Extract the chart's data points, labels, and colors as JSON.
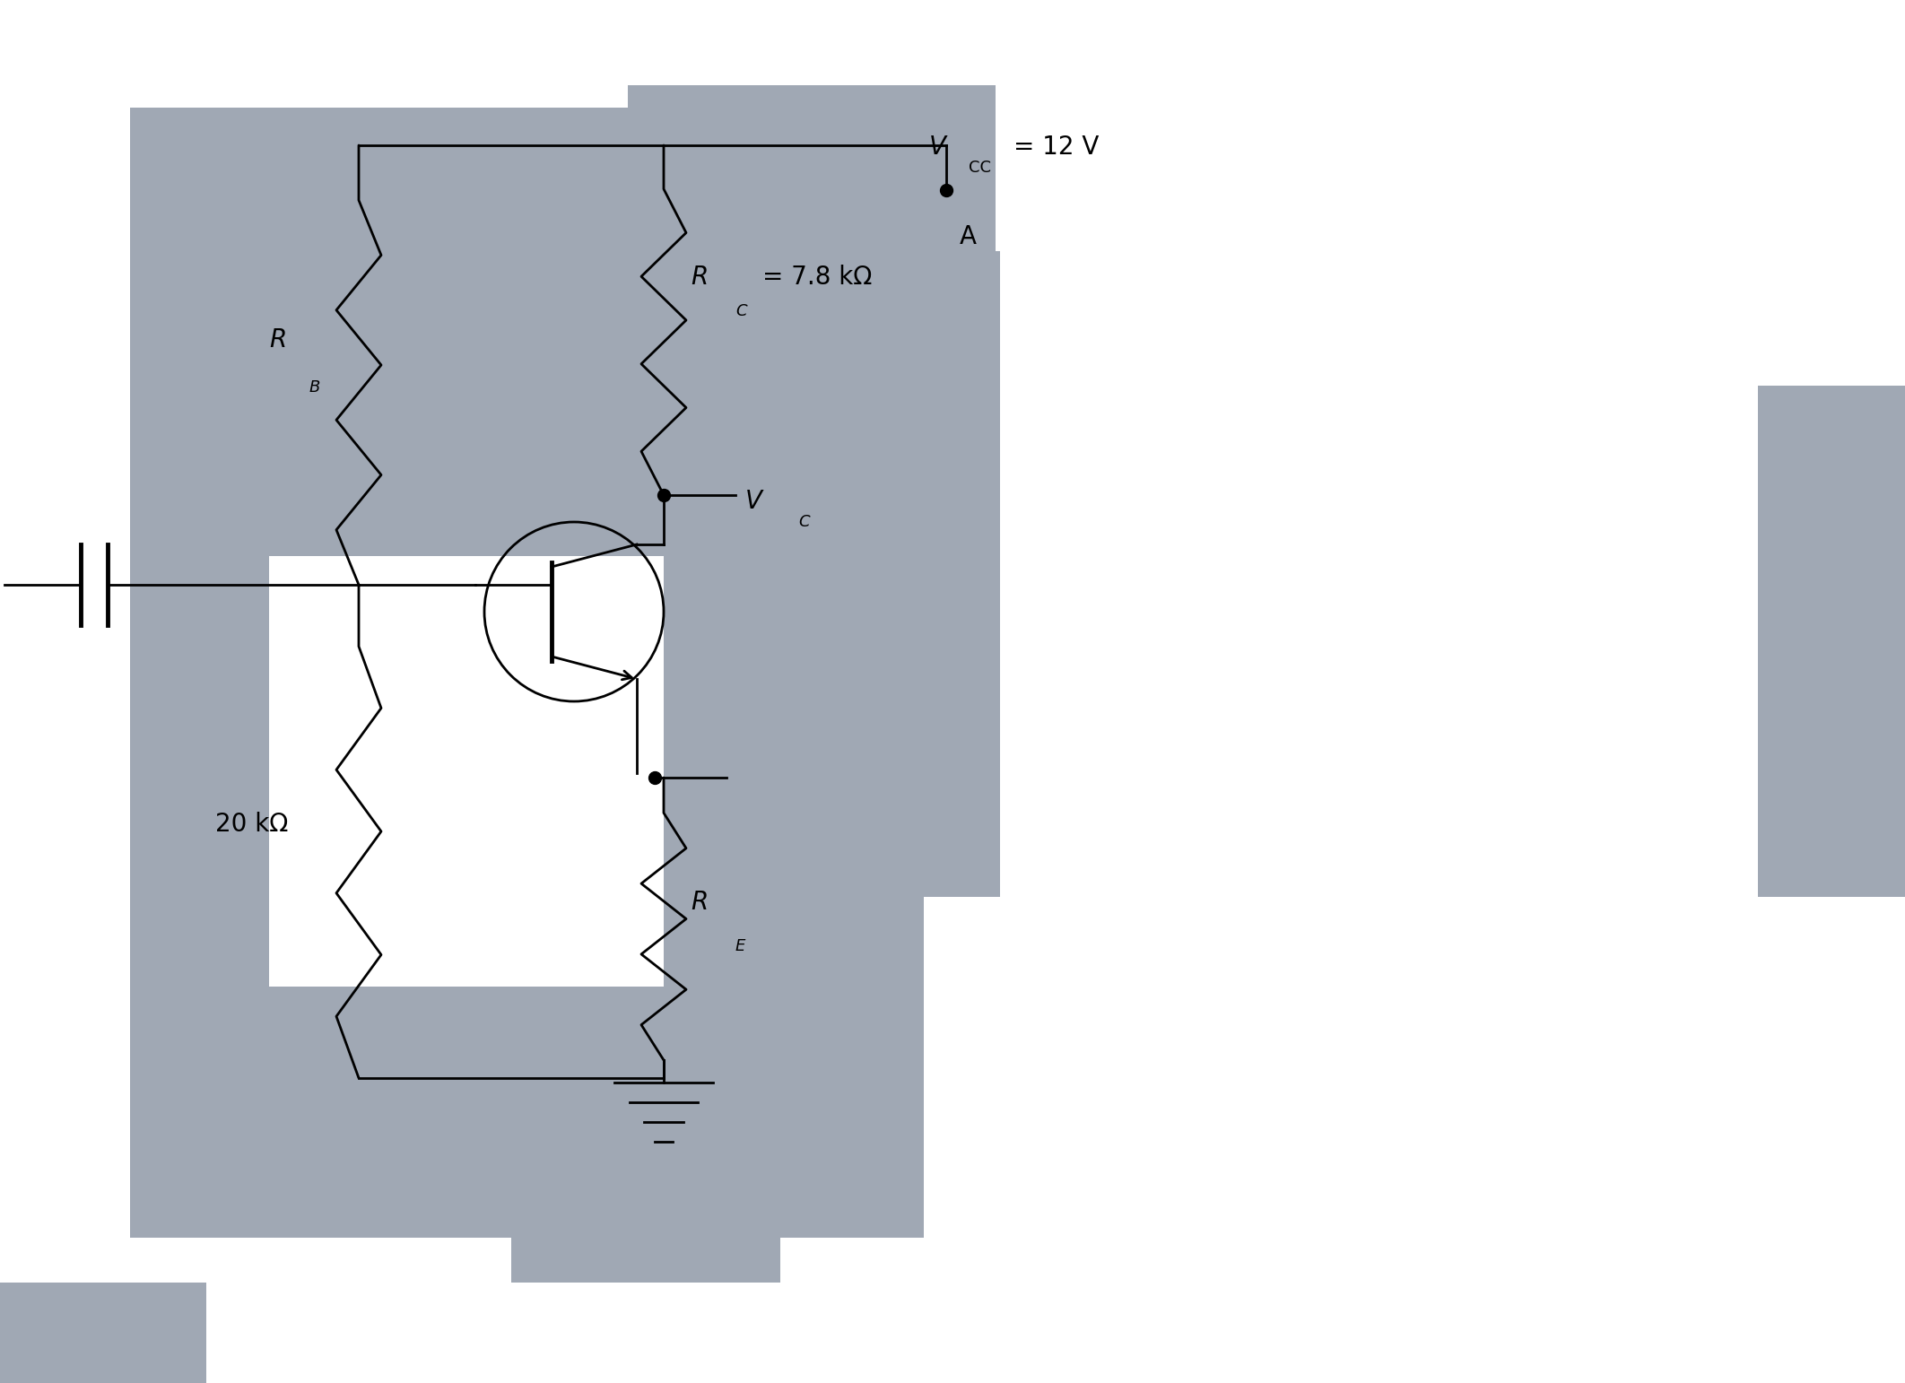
{
  "bg_color": "#a0a8b4",
  "white_bg": "#ffffff",
  "line_color": "#000000",
  "vcc_label": "V",
  "vcc_sub": "CC",
  "vcc_val": " = 12 V",
  "rc_label": "R",
  "rc_sub": "C",
  "rc_val": " = 7.8 kΩ",
  "rb_label": "R",
  "rb_sub": "B",
  "re_label": "R",
  "re_sub": "E",
  "vc_label": "V",
  "vc_sub": "C",
  "res_20k": "20 kΩ",
  "point_a": "A",
  "figw": 21.24,
  "figh": 15.42,
  "dpi": 100
}
